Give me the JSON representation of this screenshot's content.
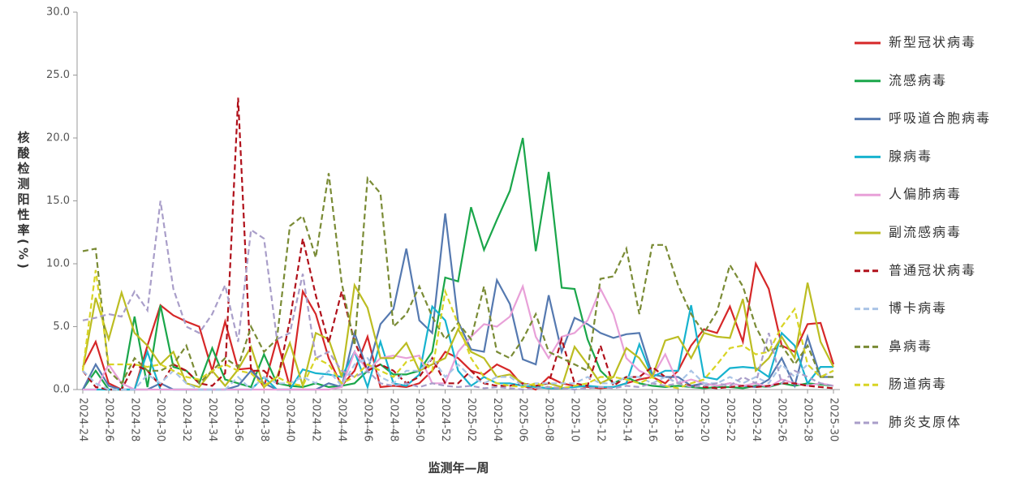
{
  "chart_data": {
    "type": "line",
    "x_label": "监测年—周",
    "y_label": "核酸检测阳性率(%)",
    "categories": [
      "2024-24",
      null,
      "2024-26",
      null,
      "2024-28",
      null,
      "2024-30",
      null,
      "2024-32",
      null,
      "2024-34",
      null,
      "2024-36",
      null,
      "2024-38",
      null,
      "2024-40",
      null,
      "2024-42",
      null,
      "2024-44",
      null,
      "2024-46",
      null,
      "2024-48",
      null,
      "2024-50",
      null,
      "2024-52",
      null,
      "2025-02",
      null,
      "2025-04",
      null,
      "2025-06",
      null,
      "2025-08",
      null,
      "2025-10",
      null,
      "2025-12",
      null,
      "2025-14",
      null,
      "2025-16",
      null,
      "2025-18",
      null,
      "2025-20",
      null,
      "2025-22",
      null,
      "2025-24",
      null,
      "2025-26",
      null,
      "2025-28",
      null,
      "2025-30"
    ],
    "ylim": [
      0,
      30
    ],
    "yticks": [
      {
        "value": 0,
        "label": "0.0"
      },
      {
        "value": 5,
        "label": "5.0"
      },
      {
        "value": 10,
        "label": "10.0"
      },
      {
        "value": 15,
        "label": "15.0"
      },
      {
        "value": 20,
        "label": "20.0"
      },
      {
        "value": 25,
        "label": "25.0"
      },
      {
        "value": 30,
        "label": "30.0"
      }
    ],
    "legend": "right",
    "series": [
      {
        "name": "新型冠状病毒",
        "color": "#d62728",
        "style": "solid",
        "values": [
          1.8,
          3.8,
          0.5,
          0,
          0,
          3.5,
          6.7,
          5.9,
          5.4,
          5.0,
          1.5,
          5.4,
          1.6,
          1.7,
          0.2,
          4.0,
          0.2,
          7.8,
          6.0,
          2.5,
          0.3,
          1.5,
          4.2,
          0.2,
          0.3,
          0.2,
          0.5,
          1.5,
          3.0,
          2.5,
          1.5,
          1.2,
          2.0,
          1.5,
          0.3,
          0,
          1.0,
          0.5,
          0.3,
          0.2,
          0.1,
          0.2,
          0.5,
          0.8,
          1.0,
          0.5,
          1.5,
          3.5,
          4.8,
          4.5,
          6.6,
          3.8,
          10.0,
          8.0,
          3.5,
          3.0,
          5.2,
          5.3,
          2.0
        ]
      },
      {
        "name": "流感病毒",
        "color": "#1aa64a",
        "style": "solid",
        "values": [
          0,
          1.5,
          0,
          0,
          5.8,
          0.2,
          6.7,
          1.8,
          1.5,
          0.5,
          3.3,
          0.8,
          0.5,
          0.2,
          2.8,
          0.5,
          0.3,
          0.2,
          0.5,
          0.2,
          0.3,
          0.5,
          1.5,
          2.0,
          1.2,
          1.2,
          1.5,
          3.0,
          8.9,
          8.6,
          14.5,
          11.1,
          13.5,
          15.8,
          20.0,
          11.0,
          17.3,
          8.1,
          8.0,
          4.0,
          1.5,
          0.5,
          1.0,
          0.5,
          0.3,
          0.2,
          0.3,
          0.2,
          0.1,
          0.2,
          0.2,
          0.1,
          0.3,
          0.2,
          0.5,
          0.3,
          0.5,
          0.4,
          0.3
        ]
      },
      {
        "name": "呼吸道合胞病毒",
        "color": "#5579b0",
        "style": "solid",
        "values": [
          0,
          2.0,
          0.3,
          0,
          0,
          0,
          0.5,
          0,
          0,
          0,
          0,
          0,
          0.3,
          1.5,
          0.5,
          0,
          0,
          0,
          0,
          0.5,
          0.2,
          4.5,
          1.5,
          5.2,
          6.4,
          11.2,
          5.5,
          4.5,
          14.0,
          5.4,
          3.2,
          3.0,
          8.7,
          6.8,
          2.4,
          2.0,
          7.5,
          3.0,
          5.7,
          5.2,
          4.5,
          4.1,
          4.4,
          4.5,
          1.2,
          1.0,
          1.0,
          0.3,
          0.5,
          0.3,
          0.5,
          0.3,
          0.2,
          0.8,
          2.5,
          0.3,
          4.2,
          1.0,
          1.0
        ]
      },
      {
        "name": "腺病毒",
        "color": "#17b3cf",
        "style": "solid",
        "values": [
          0,
          0,
          0,
          0,
          0,
          3.0,
          0,
          0,
          0,
          0,
          0,
          0,
          0,
          0,
          1.0,
          0,
          0,
          1.6,
          1.3,
          1.2,
          1.0,
          3.0,
          0.2,
          3.8,
          0.5,
          0.3,
          1.2,
          6.6,
          5.5,
          1.5,
          0.3,
          1.0,
          0.5,
          0.5,
          0.3,
          0.2,
          0.1,
          0.1,
          0.2,
          0.3,
          0.2,
          0.2,
          0.5,
          3.6,
          1.0,
          1.5,
          1.5,
          6.7,
          1.0,
          0.8,
          1.7,
          1.8,
          1.7,
          1.0,
          4.5,
          3.5,
          0.5,
          1.8,
          1.8
        ]
      },
      {
        "name": "人偏肺病毒",
        "color": "#e8a0d8",
        "style": "solid",
        "values": [
          0,
          0,
          2.0,
          0.5,
          0,
          0,
          0,
          0,
          0,
          0,
          0,
          0,
          0,
          0,
          0,
          0,
          0,
          0,
          0,
          0,
          0.2,
          3.0,
          1.5,
          2.5,
          2.7,
          2.5,
          2.7,
          0.5,
          0.5,
          3.0,
          4.2,
          5.2,
          5.0,
          5.8,
          8.2,
          4.2,
          2.5,
          4.2,
          4.5,
          5.5,
          8.0,
          6.0,
          2.5,
          1.5,
          1.0,
          2.8,
          0.5,
          0.8,
          0.5,
          0.3,
          0.5,
          0.3,
          0.5,
          0.2,
          0.8,
          0.5,
          0.3,
          0.5,
          0.3
        ]
      },
      {
        "name": "副流感病毒",
        "color": "#bcbd22",
        "style": "solid",
        "values": [
          1.6,
          7.3,
          4.0,
          7.7,
          4.5,
          3.5,
          2.0,
          3.0,
          0.5,
          0.2,
          1.5,
          0.3,
          1.6,
          3.4,
          0.2,
          1.0,
          3.7,
          0.3,
          4.5,
          4.0,
          1.0,
          8.3,
          6.5,
          2.5,
          2.5,
          3.7,
          1.5,
          2.0,
          2.5,
          4.8,
          3.0,
          2.5,
          1.0,
          1.2,
          0.5,
          0.3,
          0.5,
          0.2,
          3.4,
          2.0,
          0.5,
          1.0,
          3.3,
          2.5,
          1.0,
          3.9,
          4.2,
          2.5,
          4.5,
          4.2,
          4.1,
          7.2,
          1.5,
          2.5,
          4.2,
          2.5,
          8.5,
          3.8,
          1.8
        ]
      },
      {
        "name": "普通冠状病毒",
        "color": "#b0101a",
        "style": "dashed",
        "values": [
          1.5,
          0.2,
          0,
          0,
          2.0,
          1.5,
          0.3,
          2.0,
          1.5,
          0.5,
          0.3,
          1.3,
          23.2,
          1.5,
          1.5,
          0.5,
          5.5,
          12.0,
          7.5,
          3.7,
          7.8,
          3.8,
          1.5,
          2.0,
          1.5,
          0.5,
          1.0,
          2.5,
          0.5,
          0.5,
          1.5,
          0.5,
          0.3,
          0.3,
          0.5,
          0.3,
          0.5,
          4.0,
          0.5,
          0.3,
          3.5,
          0.3,
          1.0,
          1.0,
          1.8,
          1.0,
          0.5,
          0.3,
          0.2,
          0.1,
          0.2,
          0.3,
          0.2,
          0.3,
          0.5,
          0.5,
          0.3,
          0.2,
          0.1
        ]
      },
      {
        "name": "博卡病毒",
        "color": "#a9c4e6",
        "style": "dashed",
        "values": [
          1.5,
          0.5,
          0,
          0,
          0,
          1.2,
          0.5,
          1.5,
          0.5,
          0,
          0,
          0,
          1.0,
          0,
          1.0,
          0.5,
          0.5,
          1.0,
          0.5,
          1.5,
          0.3,
          2.0,
          2.5,
          1.0,
          0.5,
          1.5,
          1.5,
          2.5,
          1.0,
          2.0,
          1.0,
          0.5,
          1.0,
          1.0,
          0.3,
          0.5,
          0.5,
          0.5,
          0.5,
          1.0,
          0.5,
          0.5,
          1.0,
          1.0,
          0.5,
          1.0,
          0.5,
          1.5,
          0.5,
          0.5,
          1.0,
          0.5,
          1.0,
          0.5,
          2.0,
          1.0,
          2.0,
          1.0,
          1.5
        ]
      },
      {
        "name": "鼻病毒",
        "color": "#7a8b35",
        "style": "dashed",
        "values": [
          11.0,
          11.2,
          1.5,
          0.5,
          2.5,
          1.5,
          1.5,
          2.0,
          3.5,
          0.5,
          1.5,
          2.5,
          1.8,
          5.0,
          3.0,
          4.0,
          13.0,
          13.8,
          10.5,
          17.2,
          8.5,
          3.5,
          16.8,
          15.6,
          5.0,
          6.0,
          8.2,
          5.8,
          4.0,
          5.3,
          4.0,
          8.2,
          3.0,
          2.5,
          4.0,
          6.0,
          3.0,
          2.5,
          2.0,
          1.5,
          8.8,
          9.0,
          11.2,
          6.0,
          11.5,
          11.5,
          8.3,
          6.0,
          4.5,
          6.2,
          9.9,
          8.2,
          5.0,
          3.0,
          3.5,
          2.0,
          3.5,
          1.0,
          1.0
        ]
      },
      {
        "name": "肠道病毒",
        "color": "#d8d424",
        "style": "dashed",
        "values": [
          1.5,
          9.5,
          2.0,
          2.0,
          2.0,
          1.8,
          2.0,
          1.5,
          1.0,
          0.8,
          1.5,
          2.0,
          1.5,
          1.3,
          0.3,
          1.0,
          0.5,
          0.3,
          2.5,
          2.0,
          0.5,
          1.0,
          2.0,
          1.5,
          1.0,
          2.2,
          2.5,
          1.5,
          7.8,
          5.2,
          2.5,
          1.0,
          0.5,
          0.3,
          0.2,
          0.5,
          0.2,
          0.1,
          0.3,
          0.5,
          1.0,
          1.0,
          0.8,
          0.5,
          1.0,
          0.3,
          0.1,
          0.5,
          0.8,
          2.0,
          3.3,
          3.5,
          2.8,
          3.0,
          5.0,
          6.4,
          2.0,
          1.0,
          1.5
        ]
      },
      {
        "name": "肺炎支原体",
        "color": "#a99ec9",
        "style": "dashed",
        "values": [
          5.5,
          5.7,
          6.0,
          5.8,
          7.8,
          6.3,
          15.0,
          8.0,
          5.0,
          4.5,
          6.0,
          8.3,
          3.8,
          12.7,
          12.0,
          4.0,
          4.5,
          9.2,
          2.5,
          3.0,
          1.5,
          1.0,
          1.5,
          0.5,
          0.3,
          0.5,
          0.2,
          0.5,
          0.3,
          0.2,
          0.3,
          0.1,
          0.2,
          0.1,
          0,
          0.1,
          0.2,
          0.1,
          0,
          0.1,
          0.2,
          0.1,
          0.3,
          0.2,
          0.5,
          0.3,
          0.5,
          0.2,
          0.3,
          0.5,
          0.3,
          1.0,
          0.5,
          4.5,
          0.5,
          1.5,
          1.0,
          0.5,
          0.3
        ]
      }
    ]
  }
}
